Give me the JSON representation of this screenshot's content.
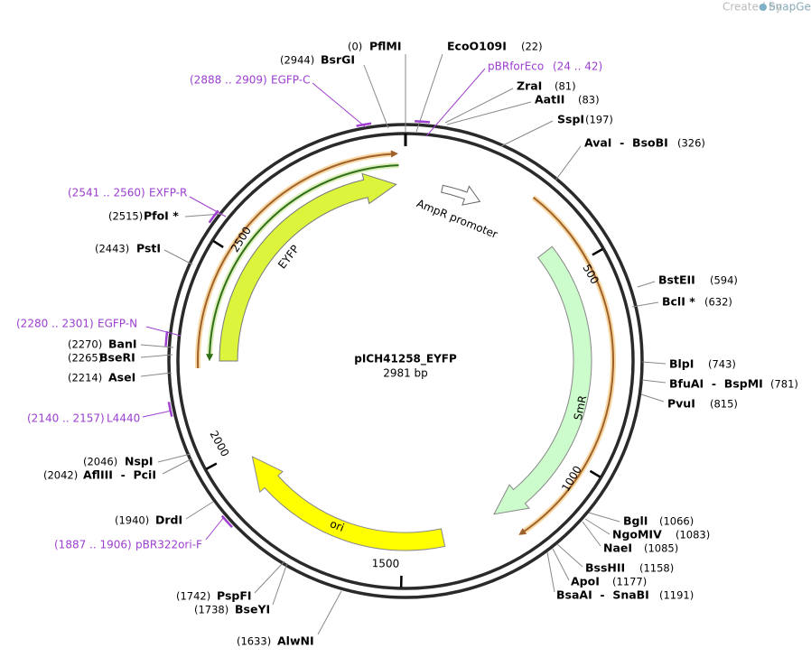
{
  "credit": {
    "prefix": "Created by",
    "brand": "SnapGene"
  },
  "plasmid": {
    "name": "pICH41258_EYFP",
    "size": "2981 bp"
  },
  "scale_ticks": [
    500,
    1000,
    1500,
    2000,
    2500
  ],
  "sites": [
    {
      "name": "PflMI",
      "position": "(0)"
    },
    {
      "name": "EcoO109I",
      "position": "(22)"
    },
    {
      "name": "ZraI",
      "position": "(81)"
    },
    {
      "name": "AatII",
      "position": "(83)"
    },
    {
      "name": "SspI",
      "position": "(197)"
    },
    {
      "name": "AvaI  -  BsoBI",
      "position": "(326)"
    },
    {
      "name": "BstEII",
      "position": "(594)"
    },
    {
      "name": "BclI *",
      "position": "(632)"
    },
    {
      "name": "BlpI",
      "position": "(743)"
    },
    {
      "name": "BfuAI  -  BspMI",
      "position": "(781)"
    },
    {
      "name": "PvuI",
      "position": "(815)"
    },
    {
      "name": "BglI",
      "position": "(1066)"
    },
    {
      "name": "NgoMIV",
      "position": "(1083)"
    },
    {
      "name": "NaeI",
      "position": "(1085)"
    },
    {
      "name": "BssHII",
      "position": "(1158)"
    },
    {
      "name": "ApoI",
      "position": "(1177)"
    },
    {
      "name": "BsaAI  -  SnaBI",
      "position": "(1191)"
    },
    {
      "name": "AlwNI",
      "position": "(1633)"
    },
    {
      "name": "BseYI",
      "position": "(1738)"
    },
    {
      "name": "PspFI",
      "position": "(1742)"
    },
    {
      "name": "DrdI",
      "position": "(1940)"
    },
    {
      "name": "AflIII  -  PciI",
      "position": "(2042)"
    },
    {
      "name": "NspI",
      "position": "(2046)"
    },
    {
      "name": "AseI",
      "position": "(2214)"
    },
    {
      "name": "BseRI",
      "position": "(2265)"
    },
    {
      "name": "BanI",
      "position": "(2270)"
    },
    {
      "name": "PstI",
      "position": "(2443)"
    },
    {
      "name": "PfoI *",
      "position": "(2515)"
    },
    {
      "name": "BsrGI",
      "position": "(2944)"
    }
  ],
  "primers": [
    {
      "name": "pBRforEco",
      "range": "(24 .. 42)"
    },
    {
      "name": "EGFP-C",
      "range": "(2888 .. 2909)"
    },
    {
      "name": "EXFP-R",
      "range": "(2541 .. 2560)"
    },
    {
      "name": "EGFP-N",
      "range": "(2280 .. 2301)"
    },
    {
      "name": "L4440",
      "range": "(2140 .. 2157)"
    },
    {
      "name": "pBR322ori-F",
      "range": "(1887 .. 1906)"
    }
  ],
  "features": [
    {
      "label": "EYFP"
    },
    {
      "label": "AmpR promoter"
    },
    {
      "label": "SmR"
    },
    {
      "label": "ori"
    }
  ]
}
